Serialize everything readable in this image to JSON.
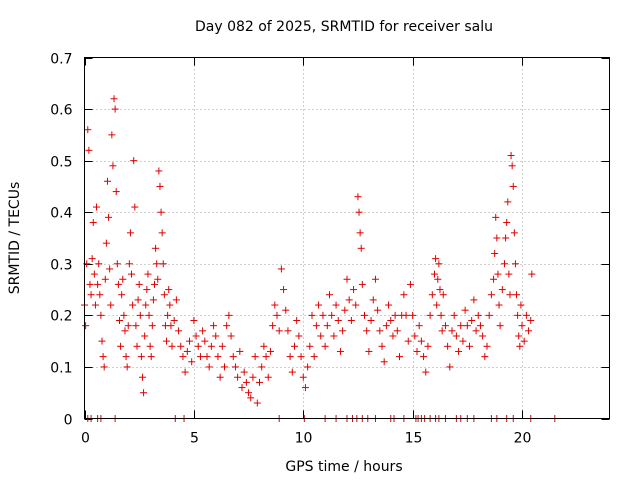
{
  "chart_data": {
    "type": "scatter",
    "title": "Day 082 of 2025, SRMTID for receiver salu",
    "xlabel": "GPS time / hours",
    "ylabel": "SRMTID / TECUs",
    "xlim": [
      0,
      24
    ],
    "ylim": [
      0,
      0.7
    ],
    "xticks": [
      0,
      5,
      10,
      15,
      20
    ],
    "xtick_labels": [
      "0",
      "5",
      "10",
      "15",
      "20"
    ],
    "yticks": [
      0,
      0.1,
      0.2,
      0.3,
      0.4,
      0.5,
      0.6,
      0.7
    ],
    "ytick_labels": [
      "0",
      "0.1",
      "0.2",
      "0.3",
      "0.4",
      "0.5",
      "0.6",
      "0.7"
    ],
    "grid": true,
    "marker": "+",
    "color": "#e00000",
    "series": [
      {
        "name": "SRMTID",
        "points": [
          [
            0.0,
            0.22
          ],
          [
            0.05,
            0.18
          ],
          [
            0.1,
            0.3
          ],
          [
            0.15,
            0.56
          ],
          [
            0.2,
            0.52
          ],
          [
            0.25,
            0.26
          ],
          [
            0.3,
            0.24
          ],
          [
            0.35,
            0.31
          ],
          [
            0.4,
            0.38
          ],
          [
            0.45,
            0.28
          ],
          [
            0.5,
            0.22
          ],
          [
            0.55,
            0.41
          ],
          [
            0.6,
            0.26
          ],
          [
            0.65,
            0.3
          ],
          [
            0.7,
            0.24
          ],
          [
            0.75,
            0.2
          ],
          [
            0.8,
            0.15
          ],
          [
            0.85,
            0.12
          ],
          [
            0.9,
            0.1
          ],
          [
            0.95,
            0.27
          ],
          [
            1.0,
            0.34
          ],
          [
            1.05,
            0.46
          ],
          [
            1.1,
            0.39
          ],
          [
            1.15,
            0.29
          ],
          [
            1.2,
            0.22
          ],
          [
            1.25,
            0.55
          ],
          [
            1.3,
            0.49
          ],
          [
            1.35,
            0.62
          ],
          [
            1.4,
            0.6
          ],
          [
            1.45,
            0.44
          ],
          [
            1.5,
            0.3
          ],
          [
            1.55,
            0.26
          ],
          [
            1.6,
            0.19
          ],
          [
            1.65,
            0.14
          ],
          [
            1.7,
            0.24
          ],
          [
            1.75,
            0.27
          ],
          [
            1.8,
            0.2
          ],
          [
            1.85,
            0.17
          ],
          [
            1.9,
            0.12
          ],
          [
            1.95,
            0.1
          ],
          [
            2.0,
            0.18
          ],
          [
            2.05,
            0.3
          ],
          [
            2.1,
            0.36
          ],
          [
            2.15,
            0.28
          ],
          [
            2.2,
            0.22
          ],
          [
            2.25,
            0.5
          ],
          [
            2.3,
            0.41
          ],
          [
            2.35,
            0.18
          ],
          [
            2.4,
            0.14
          ],
          [
            2.45,
            0.23
          ],
          [
            2.5,
            0.26
          ],
          [
            2.55,
            0.2
          ],
          [
            2.6,
            0.12
          ],
          [
            2.65,
            0.08
          ],
          [
            2.7,
            0.05
          ],
          [
            2.75,
            0.16
          ],
          [
            2.8,
            0.22
          ],
          [
            2.85,
            0.25
          ],
          [
            2.9,
            0.28
          ],
          [
            2.95,
            0.2
          ],
          [
            3.0,
            0.14
          ],
          [
            3.05,
            0.12
          ],
          [
            3.1,
            0.18
          ],
          [
            3.15,
            0.23
          ],
          [
            3.2,
            0.26
          ],
          [
            3.25,
            0.33
          ],
          [
            3.3,
            0.3
          ],
          [
            3.35,
            0.27
          ],
          [
            3.4,
            0.48
          ],
          [
            3.45,
            0.45
          ],
          [
            3.5,
            0.4
          ],
          [
            3.55,
            0.36
          ],
          [
            3.6,
            0.3
          ],
          [
            3.65,
            0.24
          ],
          [
            3.7,
            0.18
          ],
          [
            3.75,
            0.15
          ],
          [
            3.8,
            0.2
          ],
          [
            3.85,
            0.25
          ],
          [
            3.9,
            0.22
          ],
          [
            3.95,
            0.18
          ],
          [
            4.0,
            0.14
          ],
          [
            4.1,
            0.19
          ],
          [
            4.2,
            0.23
          ],
          [
            4.3,
            0.17
          ],
          [
            4.4,
            0.14
          ],
          [
            4.5,
            0.12
          ],
          [
            4.6,
            0.09
          ],
          [
            4.7,
            0.13
          ],
          [
            4.8,
            0.15
          ],
          [
            4.9,
            0.11
          ],
          [
            5.0,
            0.19
          ],
          [
            5.1,
            0.16
          ],
          [
            5.2,
            0.14
          ],
          [
            5.3,
            0.12
          ],
          [
            5.4,
            0.17
          ],
          [
            5.5,
            0.15
          ],
          [
            5.6,
            0.12
          ],
          [
            5.7,
            0.1
          ],
          [
            5.8,
            0.14
          ],
          [
            5.9,
            0.18
          ],
          [
            6.0,
            0.16
          ],
          [
            6.1,
            0.12
          ],
          [
            6.2,
            0.08
          ],
          [
            6.3,
            0.14
          ],
          [
            6.4,
            0.1
          ],
          [
            6.5,
            0.18
          ],
          [
            6.6,
            0.2
          ],
          [
            6.7,
            0.16
          ],
          [
            6.8,
            0.12
          ],
          [
            6.9,
            0.1
          ],
          [
            7.0,
            0.08
          ],
          [
            7.1,
            0.13
          ],
          [
            7.2,
            0.06
          ],
          [
            7.3,
            0.09
          ],
          [
            7.4,
            0.07
          ],
          [
            7.5,
            0.05
          ],
          [
            7.6,
            0.04
          ],
          [
            7.7,
            0.08
          ],
          [
            7.8,
            0.12
          ],
          [
            7.9,
            0.03
          ],
          [
            8.0,
            0.07
          ],
          [
            8.1,
            0.1
          ],
          [
            8.2,
            0.14
          ],
          [
            8.3,
            0.12
          ],
          [
            8.4,
            0.08
          ],
          [
            8.5,
            0.13
          ],
          [
            8.6,
            0.18
          ],
          [
            8.7,
            0.22
          ],
          [
            8.8,
            0.2
          ],
          [
            8.9,
            0.17
          ],
          [
            9.0,
            0.29
          ],
          [
            9.1,
            0.25
          ],
          [
            9.2,
            0.21
          ],
          [
            9.3,
            0.17
          ],
          [
            9.4,
            0.12
          ],
          [
            9.5,
            0.09
          ],
          [
            9.6,
            0.14
          ],
          [
            9.7,
            0.19
          ],
          [
            9.8,
            0.16
          ],
          [
            9.9,
            0.12
          ],
          [
            10.0,
            0.08
          ],
          [
            10.1,
            0.06
          ],
          [
            10.2,
            0.1
          ],
          [
            10.3,
            0.14
          ],
          [
            10.4,
            0.2
          ],
          [
            10.5,
            0.12
          ],
          [
            10.6,
            0.18
          ],
          [
            10.7,
            0.22
          ],
          [
            10.8,
            0.16
          ],
          [
            10.9,
            0.2
          ],
          [
            11.0,
            0.14
          ],
          [
            11.1,
            0.18
          ],
          [
            11.2,
            0.24
          ],
          [
            11.3,
            0.2
          ],
          [
            11.4,
            0.16
          ],
          [
            11.5,
            0.22
          ],
          [
            11.6,
            0.19
          ],
          [
            11.7,
            0.13
          ],
          [
            11.8,
            0.17
          ],
          [
            11.9,
            0.21
          ],
          [
            12.0,
            0.27
          ],
          [
            12.1,
            0.23
          ],
          [
            12.2,
            0.19
          ],
          [
            12.3,
            0.25
          ],
          [
            12.4,
            0.22
          ],
          [
            12.5,
            0.43
          ],
          [
            12.55,
            0.4
          ],
          [
            12.6,
            0.36
          ],
          [
            12.65,
            0.33
          ],
          [
            12.7,
            0.26
          ],
          [
            12.8,
            0.2
          ],
          [
            12.9,
            0.17
          ],
          [
            13.0,
            0.13
          ],
          [
            13.1,
            0.19
          ],
          [
            13.2,
            0.23
          ],
          [
            13.3,
            0.27
          ],
          [
            13.4,
            0.21
          ],
          [
            13.5,
            0.17
          ],
          [
            13.6,
            0.14
          ],
          [
            13.7,
            0.11
          ],
          [
            13.8,
            0.18
          ],
          [
            13.9,
            0.22
          ],
          [
            14.0,
            0.19
          ],
          [
            14.1,
            0.16
          ],
          [
            14.2,
            0.2
          ],
          [
            14.3,
            0.17
          ],
          [
            14.4,
            0.12
          ],
          [
            14.5,
            0.2
          ],
          [
            14.6,
            0.24
          ],
          [
            14.7,
            0.2
          ],
          [
            14.8,
            0.15
          ],
          [
            14.9,
            0.26
          ],
          [
            15.0,
            0.2
          ],
          [
            15.1,
            0.16
          ],
          [
            15.2,
            0.13
          ],
          [
            15.3,
            0.18
          ],
          [
            15.4,
            0.15
          ],
          [
            15.5,
            0.12
          ],
          [
            15.6,
            0.09
          ],
          [
            15.7,
            0.14
          ],
          [
            15.8,
            0.2
          ],
          [
            15.9,
            0.24
          ],
          [
            16.0,
            0.28
          ],
          [
            16.05,
            0.31
          ],
          [
            16.1,
            0.22
          ],
          [
            16.15,
            0.27
          ],
          [
            16.2,
            0.3
          ],
          [
            16.25,
            0.25
          ],
          [
            16.3,
            0.2
          ],
          [
            16.35,
            0.17
          ],
          [
            16.4,
            0.24
          ],
          [
            16.5,
            0.18
          ],
          [
            16.6,
            0.14
          ],
          [
            16.7,
            0.1
          ],
          [
            16.8,
            0.17
          ],
          [
            16.9,
            0.2
          ],
          [
            17.0,
            0.16
          ],
          [
            17.1,
            0.13
          ],
          [
            17.2,
            0.18
          ],
          [
            17.3,
            0.15
          ],
          [
            17.4,
            0.21
          ],
          [
            17.5,
            0.18
          ],
          [
            17.6,
            0.14
          ],
          [
            17.7,
            0.19
          ],
          [
            17.8,
            0.23
          ],
          [
            17.9,
            0.17
          ],
          [
            18.0,
            0.2
          ],
          [
            18.1,
            0.18
          ],
          [
            18.2,
            0.16
          ],
          [
            18.3,
            0.12
          ],
          [
            18.4,
            0.14
          ],
          [
            18.5,
            0.2
          ],
          [
            18.6,
            0.24
          ],
          [
            18.7,
            0.27
          ],
          [
            18.75,
            0.32
          ],
          [
            18.8,
            0.39
          ],
          [
            18.85,
            0.35
          ],
          [
            18.9,
            0.28
          ],
          [
            18.95,
            0.22
          ],
          [
            19.0,
            0.18
          ],
          [
            19.1,
            0.25
          ],
          [
            19.2,
            0.3
          ],
          [
            19.25,
            0.35
          ],
          [
            19.3,
            0.38
          ],
          [
            19.35,
            0.42
          ],
          [
            19.4,
            0.28
          ],
          [
            19.45,
            0.24
          ],
          [
            19.5,
            0.51
          ],
          [
            19.55,
            0.49
          ],
          [
            19.6,
            0.45
          ],
          [
            19.65,
            0.36
          ],
          [
            19.7,
            0.3
          ],
          [
            19.75,
            0.24
          ],
          [
            19.8,
            0.2
          ],
          [
            19.85,
            0.16
          ],
          [
            19.9,
            0.14
          ],
          [
            19.95,
            0.22
          ],
          [
            20.0,
            0.18
          ],
          [
            20.1,
            0.15
          ],
          [
            20.2,
            0.2
          ],
          [
            20.3,
            0.17
          ],
          [
            20.4,
            0.19
          ],
          [
            20.45,
            0.28
          ]
        ],
        "zero_points_x": [
          0.15,
          0.3,
          0.6,
          0.75,
          1.4,
          4.15,
          4.55,
          8.9,
          10.05,
          11.0,
          11.5,
          12.0,
          12.25,
          12.45,
          12.7,
          12.95,
          13.3,
          14.0,
          14.15,
          14.6,
          15.15,
          15.25,
          15.4,
          15.55,
          15.8,
          16.05,
          16.2,
          16.5,
          17.0,
          17.2,
          17.5,
          17.8,
          18.6,
          18.85,
          19.3,
          19.6,
          20.4,
          21.5
        ]
      }
    ]
  }
}
